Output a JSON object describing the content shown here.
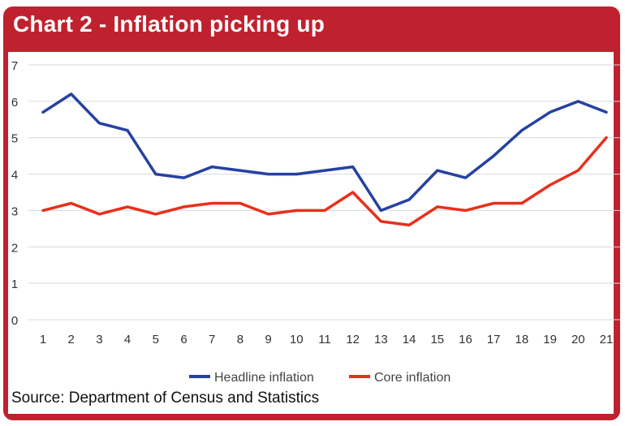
{
  "header": {
    "title": "Chart 2 - Inflation picking up"
  },
  "footer": {
    "source": "Source: Department of Census and Statistics"
  },
  "colors": {
    "frame": "#c0212f",
    "headline": "#2541a3",
    "core": "#e8301c",
    "grid": "#d9d9d9"
  },
  "chart_data": {
    "type": "line",
    "title": "Chart 2 - Inflation picking up",
    "xlabel": "",
    "ylabel": "",
    "x": [
      1,
      2,
      3,
      4,
      5,
      6,
      7,
      8,
      9,
      10,
      11,
      12,
      13,
      14,
      15,
      16,
      17,
      18,
      19,
      20,
      21
    ],
    "ylim": [
      0,
      7
    ],
    "yticks": [
      0,
      1,
      2,
      3,
      4,
      5,
      6,
      7
    ],
    "grid": true,
    "legend_position": "bottom",
    "series": [
      {
        "name": "Headline inflation",
        "color": "#2541a3",
        "values": [
          5.7,
          6.2,
          5.4,
          5.2,
          4.0,
          3.9,
          4.2,
          4.1,
          4.0,
          4.0,
          4.1,
          4.2,
          3.0,
          3.3,
          4.1,
          3.9,
          4.5,
          5.2,
          5.7,
          6.0,
          5.7
        ]
      },
      {
        "name": "Core inflation",
        "color": "#e8301c",
        "values": [
          3.0,
          3.2,
          2.9,
          3.1,
          2.9,
          3.1,
          3.2,
          3.2,
          2.9,
          3.0,
          3.0,
          3.5,
          2.7,
          2.6,
          3.1,
          3.0,
          3.2,
          3.2,
          3.7,
          4.1,
          5.0
        ]
      }
    ]
  }
}
